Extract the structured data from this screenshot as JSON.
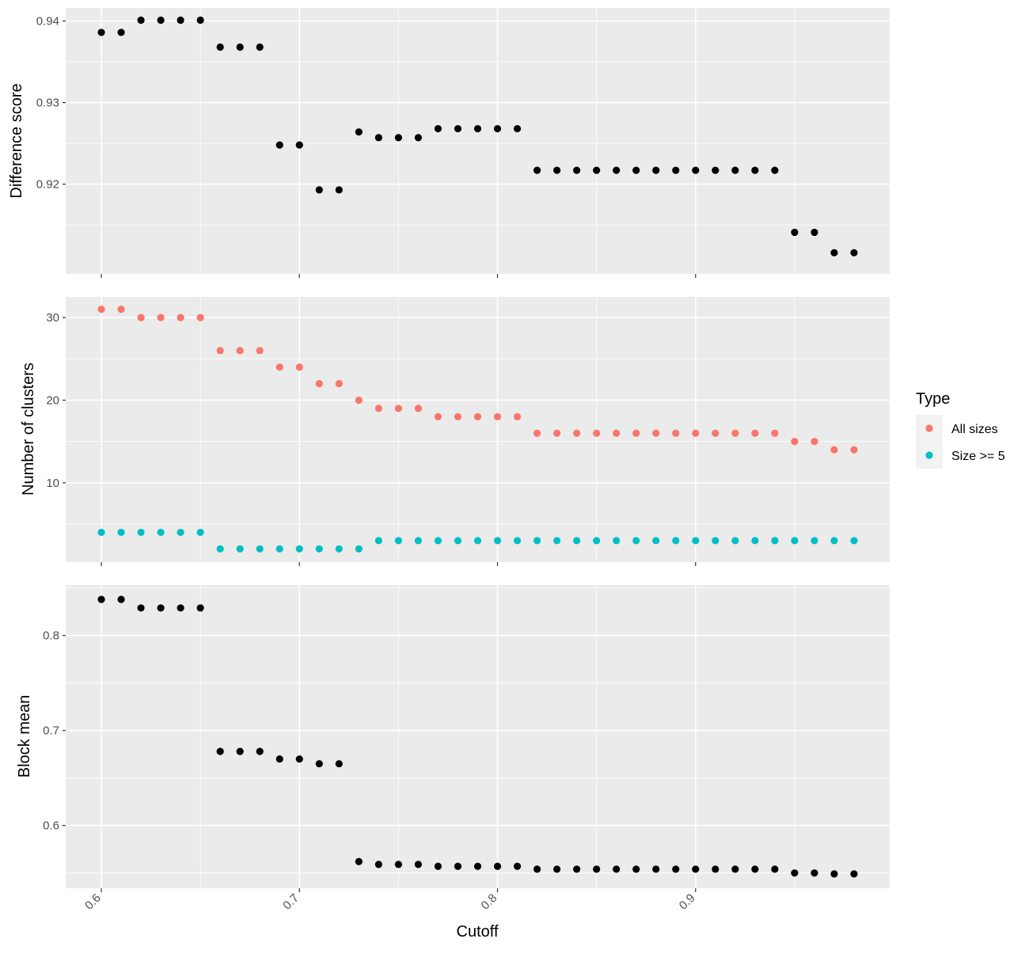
{
  "chart_data": {
    "type": "scatter",
    "xlabel": "Cutoff",
    "x_ticks": [
      0.6,
      0.7,
      0.8,
      0.9
    ],
    "x_tick_labels": [
      "0.6",
      "0.7",
      "0.8",
      "0.9"
    ],
    "xlim": [
      0.582,
      0.998
    ],
    "x": [
      0.6,
      0.61,
      0.62,
      0.63,
      0.64,
      0.65,
      0.66,
      0.67,
      0.68,
      0.69,
      0.7,
      0.71,
      0.72,
      0.73,
      0.74,
      0.75,
      0.76,
      0.77,
      0.78,
      0.79,
      0.8,
      0.81,
      0.82,
      0.83,
      0.84,
      0.85,
      0.86,
      0.87,
      0.88,
      0.89,
      0.9,
      0.91,
      0.92,
      0.93,
      0.94,
      0.95,
      0.96,
      0.97,
      0.98
    ],
    "legend": {
      "title": "Type",
      "placement": "right",
      "entries": [
        {
          "label": "All sizes",
          "color": "#f8766d"
        },
        {
          "label": "Size >= 5",
          "color": "#00bfc4"
        }
      ]
    },
    "panels": [
      {
        "ylabel": "Difference score",
        "ylim": [
          0.909,
          0.9416
        ],
        "y_ticks": [
          0.92,
          0.93,
          0.94
        ],
        "y_tick_labels": [
          "0.92",
          "0.93",
          "0.94"
        ],
        "series": [
          {
            "color": "#000000",
            "values": [
              0.9386,
              0.9386,
              0.9401,
              0.9401,
              0.9401,
              0.9401,
              0.9368,
              0.9368,
              0.9368,
              0.9248,
              0.9248,
              0.9193,
              0.9193,
              0.9264,
              0.9257,
              0.9257,
              0.9257,
              0.9268,
              0.9268,
              0.9268,
              0.9268,
              0.9268,
              0.9217,
              0.9217,
              0.9217,
              0.9217,
              0.9217,
              0.9217,
              0.9217,
              0.9217,
              0.9217,
              0.9217,
              0.9217,
              0.9217,
              0.9217,
              0.9141,
              0.9141,
              0.9116,
              0.9116
            ]
          }
        ]
      },
      {
        "ylabel": "Number of clusters",
        "ylim": [
          0.4,
          32.5
        ],
        "y_ticks": [
          10,
          20,
          30
        ],
        "y_tick_labels": [
          "10",
          "20",
          "30"
        ],
        "series": [
          {
            "name": "All sizes",
            "color": "#f8766d",
            "values": [
              31,
              31,
              30,
              30,
              30,
              30,
              26,
              26,
              26,
              24,
              24,
              22,
              22,
              20,
              19,
              19,
              19,
              18,
              18,
              18,
              18,
              18,
              16,
              16,
              16,
              16,
              16,
              16,
              16,
              16,
              16,
              16,
              16,
              16,
              16,
              15,
              15,
              14,
              14
            ]
          },
          {
            "name": "Size >= 5",
            "color": "#00bfc4",
            "values": [
              4,
              4,
              4,
              4,
              4,
              4,
              2,
              2,
              2,
              2,
              2,
              2,
              2,
              2,
              3,
              3,
              3,
              3,
              3,
              3,
              3,
              3,
              3,
              3,
              3,
              3,
              3,
              3,
              3,
              3,
              3,
              3,
              3,
              3,
              3,
              3,
              3,
              3,
              3
            ]
          }
        ]
      },
      {
        "ylabel": "Block mean",
        "ylim": [
          0.5339,
          0.8531
        ],
        "y_ticks": [
          0.6,
          0.7,
          0.8
        ],
        "y_tick_labels": [
          "0.6",
          "0.7",
          "0.8"
        ],
        "series": [
          {
            "color": "#000000",
            "values": [
              0.838,
              0.838,
              0.829,
              0.829,
              0.829,
              0.829,
              0.678,
              0.678,
              0.678,
              0.67,
              0.67,
              0.665,
              0.665,
              0.562,
              0.559,
              0.559,
              0.559,
              0.557,
              0.557,
              0.557,
              0.557,
              0.557,
              0.554,
              0.554,
              0.554,
              0.554,
              0.554,
              0.554,
              0.554,
              0.554,
              0.554,
              0.554,
              0.554,
              0.554,
              0.554,
              0.55,
              0.55,
              0.549,
              0.549
            ]
          }
        ]
      }
    ]
  }
}
